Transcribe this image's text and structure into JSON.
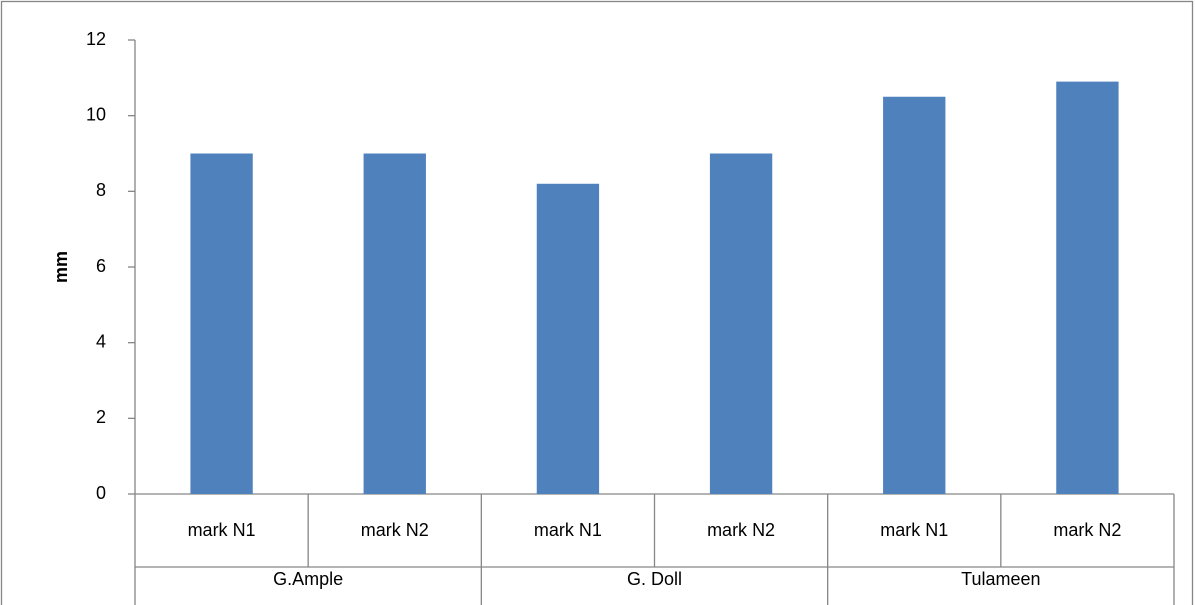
{
  "chart_data": {
    "type": "bar",
    "y_label": "mm",
    "color": "#4f81bd",
    "groups": [
      {
        "name": "G.Ample",
        "categories": [
          "mark N1",
          "mark N2"
        ],
        "values": [
          9,
          9
        ]
      },
      {
        "name": "G. Doll",
        "categories": [
          "mark N1",
          "mark N2"
        ],
        "values": [
          8.2,
          9
        ]
      },
      {
        "name": "Tulameen",
        "categories": [
          "mark N1",
          "mark N2"
        ],
        "values": [
          10.5,
          10.9
        ]
      }
    ],
    "ylim": [
      0,
      12
    ],
    "yticks": [
      0,
      2,
      4,
      6,
      8,
      10,
      12
    ]
  }
}
